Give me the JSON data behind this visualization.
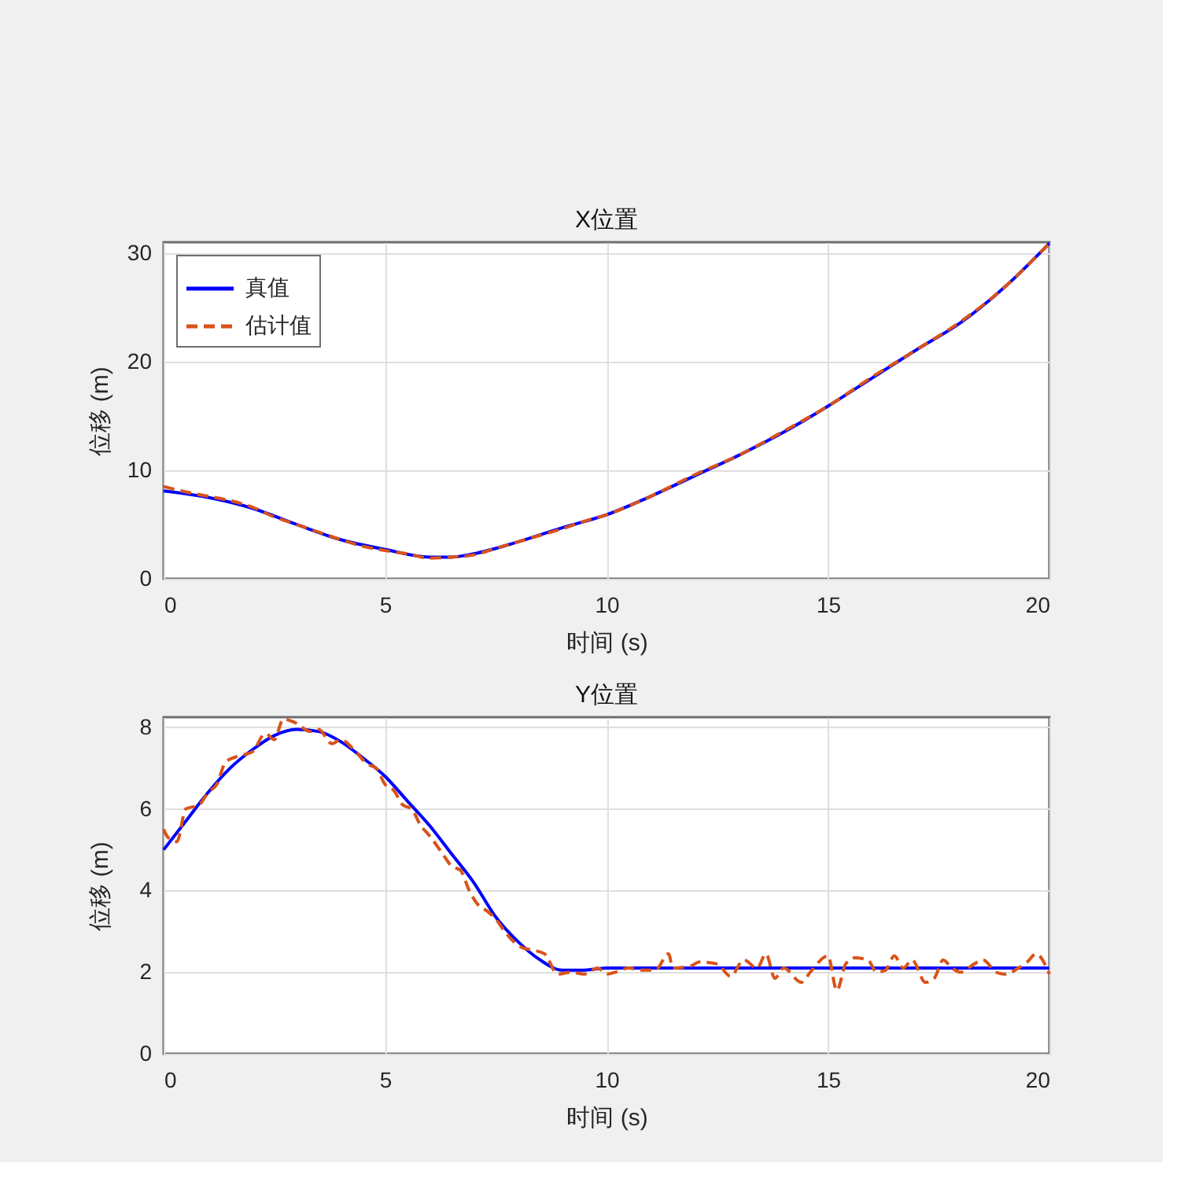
{
  "chart_data": [
    {
      "type": "line",
      "title": "X位置",
      "xlabel": "时间 (s)",
      "ylabel": "位移 (m)",
      "xlim": [
        0,
        20
      ],
      "ylim": [
        0,
        31
      ],
      "xticks": [
        0,
        5,
        10,
        15,
        20
      ],
      "yticks": [
        0,
        10,
        20,
        30
      ],
      "grid": true,
      "legend": "top left",
      "series": [
        {
          "name": "真值",
          "color": "#0000ff",
          "line_style": "solid",
          "x": [
            0,
            1,
            2,
            3,
            4,
            5,
            6,
            6.5,
            7,
            8,
            9,
            10,
            11,
            12,
            13,
            14,
            15,
            16,
            17,
            18,
            19,
            20
          ],
          "values": [
            8.1,
            7.5,
            6.5,
            5.0,
            3.6,
            2.7,
            2.0,
            2.0,
            2.3,
            3.4,
            4.7,
            5.9,
            7.6,
            9.5,
            11.4,
            13.5,
            15.9,
            18.5,
            21.1,
            23.6,
            26.9,
            30.9
          ]
        },
        {
          "name": "估计值",
          "color": "#d95319",
          "line_style": "dashed",
          "x": [
            0,
            0.5,
            1,
            1.5,
            2,
            2.5,
            3,
            3.5,
            4,
            4.5,
            5,
            5.5,
            6,
            6.5,
            7,
            7.5,
            8,
            8.5,
            9,
            9.5,
            10,
            11,
            12,
            13,
            14,
            15,
            16,
            17,
            18,
            19,
            20
          ],
          "values": [
            8.5,
            8.0,
            7.6,
            7.2,
            6.6,
            5.7,
            5.0,
            4.3,
            3.6,
            3.0,
            2.6,
            2.3,
            1.9,
            2.0,
            2.2,
            2.8,
            3.4,
            4.0,
            4.6,
            5.3,
            5.9,
            7.6,
            9.6,
            11.4,
            13.6,
            15.9,
            18.6,
            21.1,
            23.7,
            26.9,
            30.9
          ]
        }
      ]
    },
    {
      "type": "line",
      "title": "Y位置",
      "xlabel": "时间 (s)",
      "ylabel": "位移 (m)",
      "xlim": [
        0,
        20
      ],
      "ylim": [
        0,
        8.25
      ],
      "xticks": [
        0,
        5,
        10,
        15,
        20
      ],
      "yticks": [
        0,
        2,
        4,
        6,
        8
      ],
      "grid": true,
      "series": [
        {
          "color": "#0000ff",
          "line_style": "solid",
          "x": [
            0,
            0.5,
            1,
            1.5,
            2,
            2.5,
            3,
            3.5,
            4,
            4.5,
            5,
            5.5,
            6,
            6.5,
            7,
            7.5,
            8,
            8.5,
            9,
            9.5,
            10,
            20
          ],
          "values": [
            5.0,
            5.7,
            6.4,
            7.0,
            7.45,
            7.8,
            7.95,
            7.9,
            7.65,
            7.25,
            6.8,
            6.2,
            5.6,
            4.9,
            4.2,
            3.35,
            2.75,
            2.3,
            2.05,
            2.05,
            2.1,
            2.1
          ]
        },
        {
          "color": "#d95319",
          "line_style": "dashed",
          "x": [
            0,
            0.1,
            0.3,
            0.5,
            0.8,
            1.0,
            1.2,
            1.4,
            1.7,
            2.0,
            2.3,
            2.5,
            2.7,
            3.0,
            3.3,
            3.5,
            3.8,
            4.0,
            4.3,
            4.6,
            4.8,
            5.0,
            5.2,
            5.4,
            5.6,
            5.8,
            6.0,
            6.3,
            6.5,
            6.7,
            6.9,
            7.1,
            7.3,
            7.5,
            7.7,
            7.9,
            8.1,
            8.3,
            8.6,
            8.9,
            9.2,
            9.5,
            9.8,
            10.0,
            10.2,
            10.5,
            10.8,
            11.1,
            11.4,
            11.5,
            11.9,
            12.1,
            12.5,
            12.8,
            13.1,
            13.4,
            13.6,
            13.8,
            14.0,
            14.4,
            14.6,
            15.0,
            15.2,
            15.4,
            15.6,
            15.9,
            16.1,
            16.3,
            16.5,
            16.7,
            16.9,
            17.2,
            17.4,
            17.6,
            17.8,
            18.0,
            18.3,
            18.5,
            18.8,
            19.0,
            19.3,
            19.5,
            19.7,
            20.0
          ],
          "values": [
            5.5,
            5.3,
            5.2,
            6.0,
            6.1,
            6.4,
            6.6,
            7.15,
            7.3,
            7.4,
            7.85,
            7.7,
            8.2,
            8.1,
            7.9,
            7.95,
            7.6,
            7.7,
            7.45,
            7.1,
            7.0,
            6.6,
            6.45,
            6.1,
            6.0,
            5.6,
            5.35,
            4.9,
            4.6,
            4.5,
            4.0,
            3.65,
            3.5,
            3.3,
            3.0,
            2.75,
            2.6,
            2.55,
            2.45,
            1.95,
            2.0,
            1.95,
            2.1,
            1.95,
            2.0,
            2.1,
            2.05,
            2.05,
            2.45,
            2.1,
            2.15,
            2.25,
            2.2,
            1.9,
            2.3,
            2.1,
            2.45,
            1.85,
            2.1,
            1.75,
            2.0,
            2.4,
            1.55,
            2.2,
            2.35,
            2.3,
            2.0,
            2.05,
            2.4,
            2.1,
            2.3,
            1.75,
            1.85,
            2.3,
            2.1,
            2.0,
            2.2,
            2.3,
            2.0,
            1.95,
            2.1,
            2.25,
            2.45,
            1.95
          ]
        }
      ]
    }
  ]
}
